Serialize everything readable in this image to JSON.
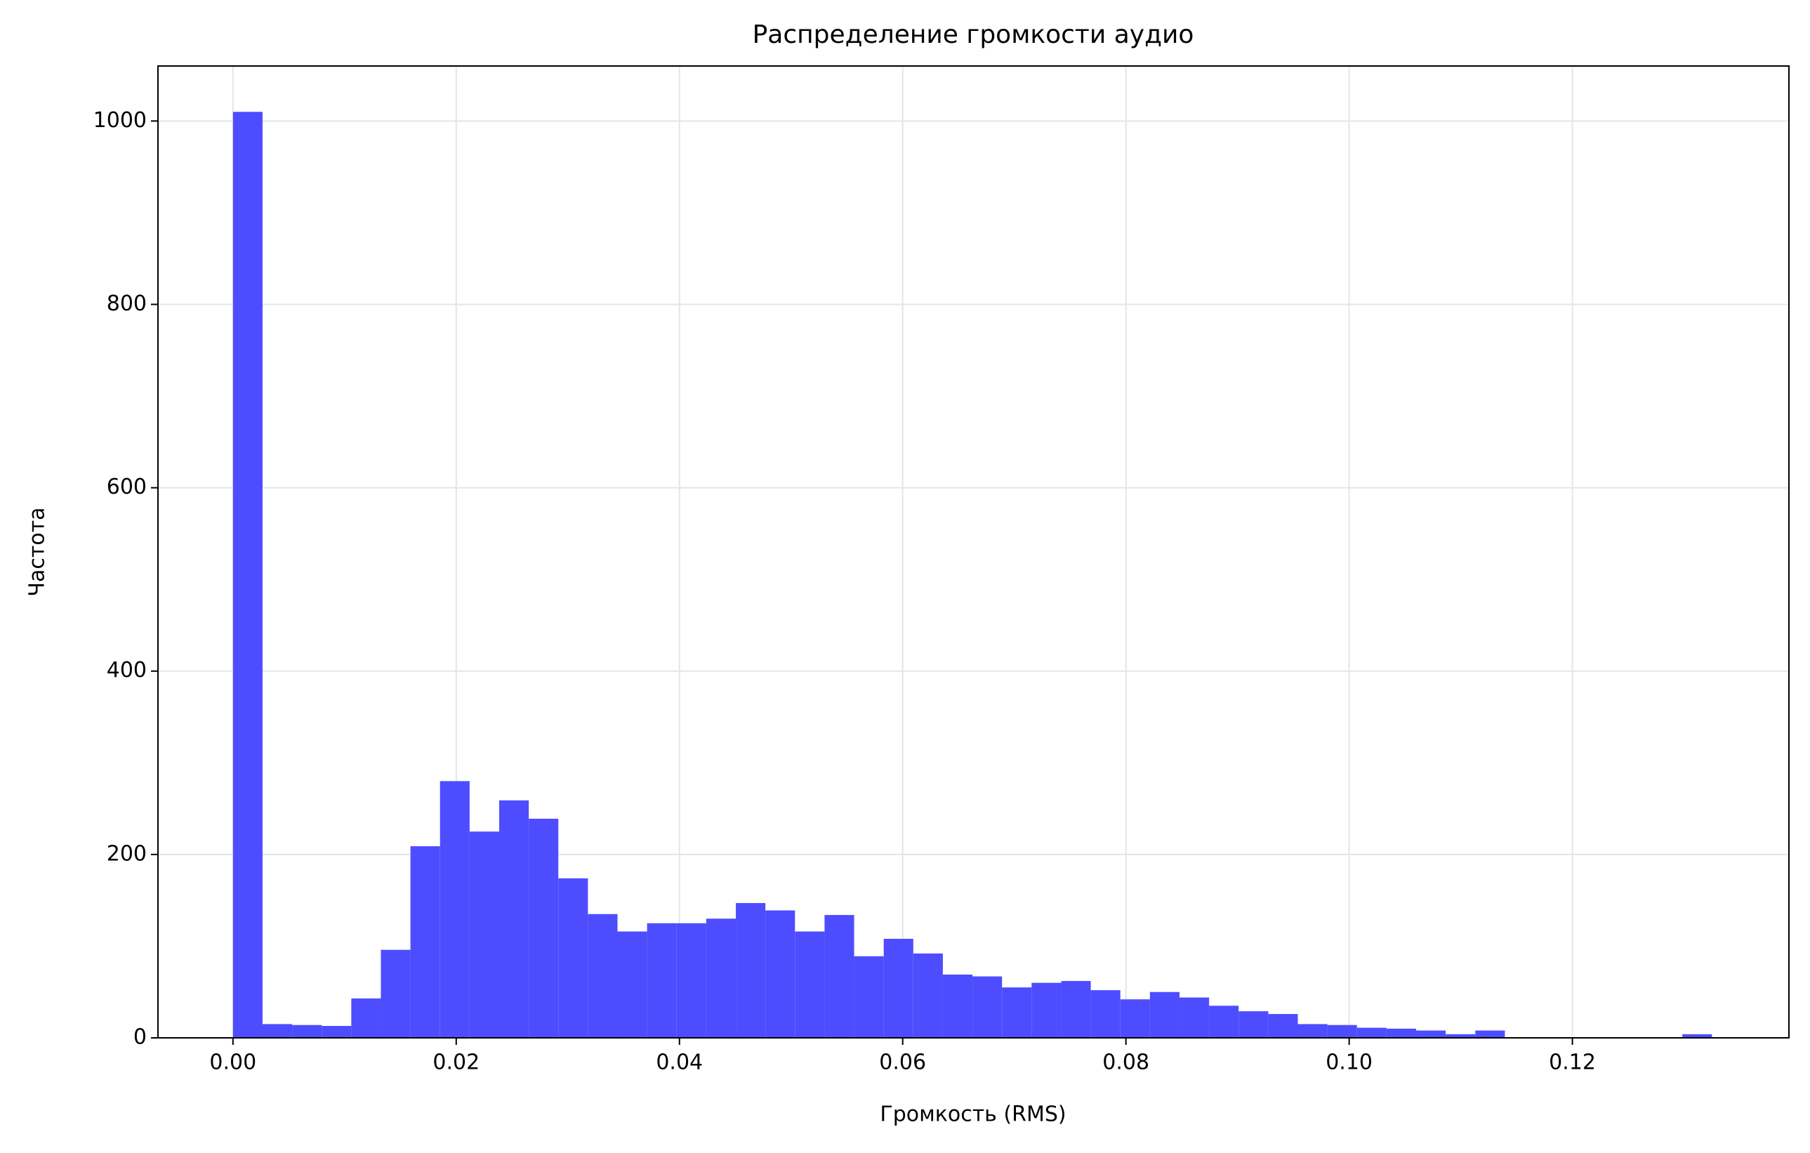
{
  "chart_data": {
    "type": "histogram",
    "title": "Распределение громкости аудио",
    "xlabel": "Громкость (RMS)",
    "ylabel": "Частота",
    "bins": [
      0,
      0.00265,
      0.0053,
      0.00795,
      0.0106,
      0.01325,
      0.0159,
      0.01855,
      0.0212,
      0.02385,
      0.0265,
      0.02915,
      0.0318,
      0.03445,
      0.0371,
      0.03975,
      0.0424,
      0.04505,
      0.0477,
      0.05035,
      0.053,
      0.05565,
      0.0583,
      0.06095,
      0.0636,
      0.06625,
      0.0689,
      0.07155,
      0.0742,
      0.07685,
      0.0795,
      0.08215,
      0.0848,
      0.08745,
      0.0901,
      0.09275,
      0.0954,
      0.09805,
      0.1007,
      0.10335,
      0.106,
      0.10865,
      0.1113,
      0.11395,
      0.1166,
      0.11925,
      0.1219,
      0.12455,
      0.1272,
      0.12985,
      0.1325
    ],
    "values": [
      1010,
      15,
      14,
      13,
      43,
      96,
      209,
      280,
      225,
      259,
      239,
      174,
      135,
      116,
      125,
      125,
      130,
      147,
      139,
      116,
      134,
      89,
      108,
      92,
      69,
      67,
      55,
      60,
      62,
      52,
      42,
      50,
      44,
      35,
      29,
      26,
      15,
      14,
      11,
      10,
      8,
      4,
      8,
      0,
      0,
      0,
      0,
      0,
      0,
      4
    ],
    "color": "#4d4dff",
    "xlim": [
      -0.00672,
      0.1394
    ],
    "ylim": [
      0,
      1060
    ],
    "xticks": [
      {
        "value": 0,
        "label": "0.00"
      },
      {
        "value": 0.02,
        "label": "0.02"
      },
      {
        "value": 0.04,
        "label": "0.04"
      },
      {
        "value": 0.06,
        "label": "0.06"
      },
      {
        "value": 0.08,
        "label": "0.08"
      },
      {
        "value": 0.1,
        "label": "0.10"
      },
      {
        "value": 0.12,
        "label": "0.12"
      }
    ],
    "yticks": [
      0,
      200,
      400,
      600,
      800,
      1000
    ],
    "grid": true
  }
}
